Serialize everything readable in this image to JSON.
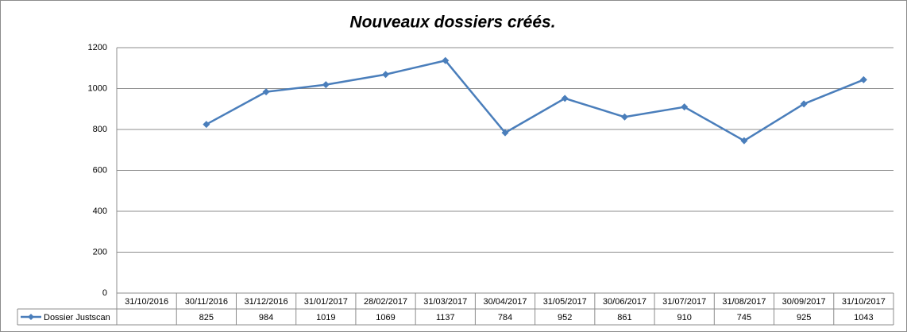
{
  "chart_data": {
    "type": "line",
    "title": "Nouveaux dossiers créés.",
    "categories": [
      "31/10/2016",
      "30/11/2016",
      "31/12/2016",
      "31/01/2017",
      "28/02/2017",
      "31/03/2017",
      "30/04/2017",
      "31/05/2017",
      "30/06/2017",
      "31/07/2017",
      "31/08/2017",
      "30/09/2017",
      "31/10/2017"
    ],
    "series": [
      {
        "name": "Dossier Justscan",
        "color": "#4a7ebb",
        "values": [
          null,
          825,
          984,
          1019,
          1069,
          1137,
          784,
          952,
          861,
          910,
          745,
          925,
          1043
        ]
      }
    ],
    "ylim": [
      0,
      1200
    ],
    "yticks": [
      0,
      200,
      400,
      600,
      800,
      1000,
      1200
    ],
    "grid": true
  }
}
